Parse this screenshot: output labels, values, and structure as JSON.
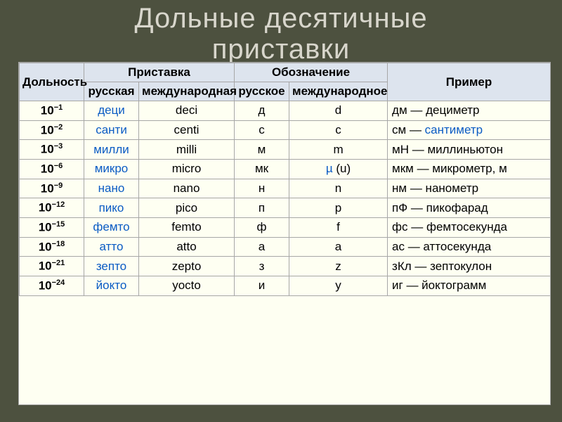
{
  "title_line1": "Дольные  десятичные",
  "title_line2": "приставки",
  "header": {
    "fraction": "Дольность",
    "prefix": "Приставка",
    "prefix_ru": "русская",
    "prefix_int": "международная",
    "symbol": "Обозначение",
    "symbol_ru": "русское",
    "symbol_int": "международное",
    "example": "Пример"
  },
  "rows": [
    {
      "exp": "-1",
      "ru": "деци",
      "int": "deci",
      "sym_ru": "д",
      "sym_int": "d",
      "ex": "дм — дециметр",
      "ru_link": true,
      "sym_link": false,
      "ex_html": "дм — дециметр"
    },
    {
      "exp": "-2",
      "ru": "санти",
      "int": "centi",
      "sym_ru": "с",
      "sym_int": "c",
      "ru_link": true,
      "sym_link": false,
      "ex_html": "см — <span class='link'>сантиметр</span>"
    },
    {
      "exp": "-3",
      "ru": "милли",
      "int": "milli",
      "sym_ru": "м",
      "sym_int": "m",
      "ru_link": true,
      "sym_link": false,
      "ex_html": "мН — миллиньютон"
    },
    {
      "exp": "-6",
      "ru": "микро",
      "int": "micro",
      "sym_ru": "мк",
      "sym_int": "µ (u)",
      "ru_link": true,
      "sym_link": true,
      "ex_html": "мкм — микрометр, м"
    },
    {
      "exp": "-9",
      "ru": "нано",
      "int": "nano",
      "sym_ru": "н",
      "sym_int": "n",
      "ru_link": true,
      "sym_link": false,
      "ex_html": "нм — нанометр"
    },
    {
      "exp": "-12",
      "ru": "пико",
      "int": "pico",
      "sym_ru": "п",
      "sym_int": "p",
      "ru_link": true,
      "sym_link": false,
      "ex_html": "пФ — пикофарад"
    },
    {
      "exp": "-15",
      "ru": "фемто",
      "int": "femto",
      "sym_ru": "ф",
      "sym_int": "f",
      "ru_link": true,
      "sym_link": false,
      "ex_html": "фс — фемтосекунда"
    },
    {
      "exp": "-18",
      "ru": "атто",
      "int": "atto",
      "sym_ru": "а",
      "sym_int": "a",
      "ru_link": true,
      "sym_link": false,
      "ex_html": "ас — аттосекунда"
    },
    {
      "exp": "-21",
      "ru": "зепто",
      "int": "zepto",
      "sym_ru": "з",
      "sym_int": "z",
      "ru_link": true,
      "sym_link": false,
      "ex_html": "зКл — зептокулон"
    },
    {
      "exp": "-24",
      "ru": "йокто",
      "int": "yocto",
      "sym_ru": "и",
      "sym_int": "y",
      "ru_link": true,
      "sym_link": false,
      "ex_html": "иг — йоктограмм"
    }
  ],
  "colors": {
    "page_bg": "#4d513f",
    "title_color": "#d8d6cc",
    "table_bg": "#fefff2",
    "header_bg": "#dde4ee",
    "border": "#a7a7a7",
    "link": "#0a5bc4"
  },
  "fonts": {
    "title_size": 40,
    "cell_size": 17
  }
}
